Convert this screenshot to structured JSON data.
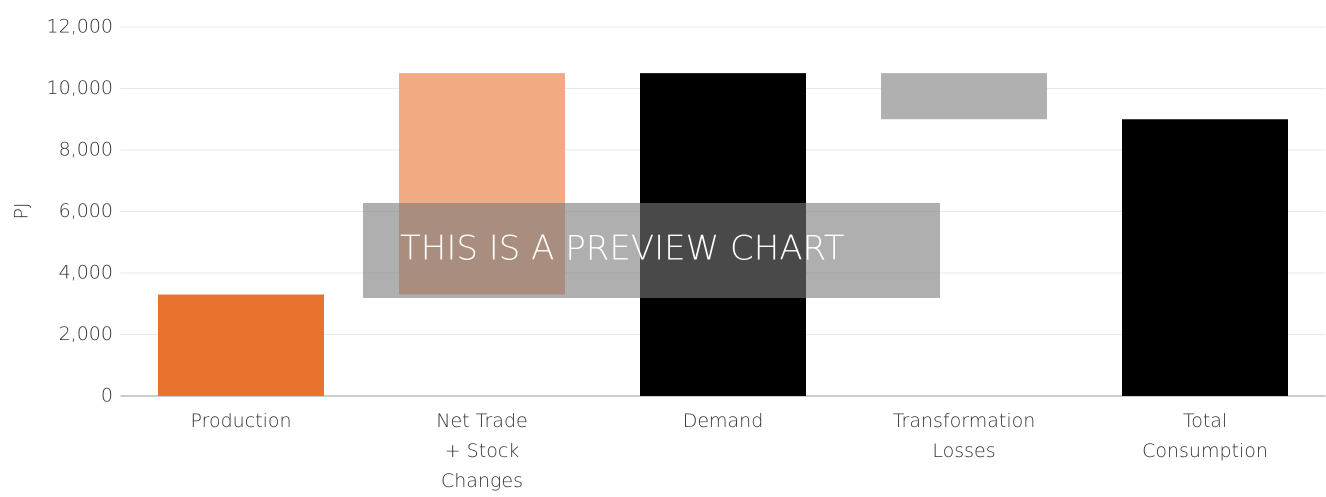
{
  "chart_data": {
    "type": "waterfall",
    "categories": [
      "Production",
      "Net Trade\n+ Stock\nChanges",
      "Demand",
      "Transformation\nLosses",
      "Total\nConsumption"
    ],
    "values": [
      3300,
      7200,
      10500,
      -1500,
      9000
    ],
    "totals": [
      false,
      false,
      true,
      false,
      true
    ],
    "colors": [
      "#e8722f",
      "#f0aa84",
      "#000000",
      "#b0b0b0",
      "#000000"
    ],
    "ylabel": "PJ",
    "ylim": [
      0,
      12000
    ],
    "yticks": [
      0,
      {
        "value": 2000,
        "label": "2,000"
      },
      {
        "value": 4000,
        "label": "4,000"
      },
      {
        "value": 6000,
        "label": "6,000"
      },
      {
        "value": 8000,
        "label": "8,000"
      },
      {
        "value": 10000,
        "label": "10,000"
      },
      {
        "value": 12000,
        "label": "12,000"
      }
    ],
    "grid": true,
    "watermark": "THIS IS A PREVIEW CHART"
  }
}
